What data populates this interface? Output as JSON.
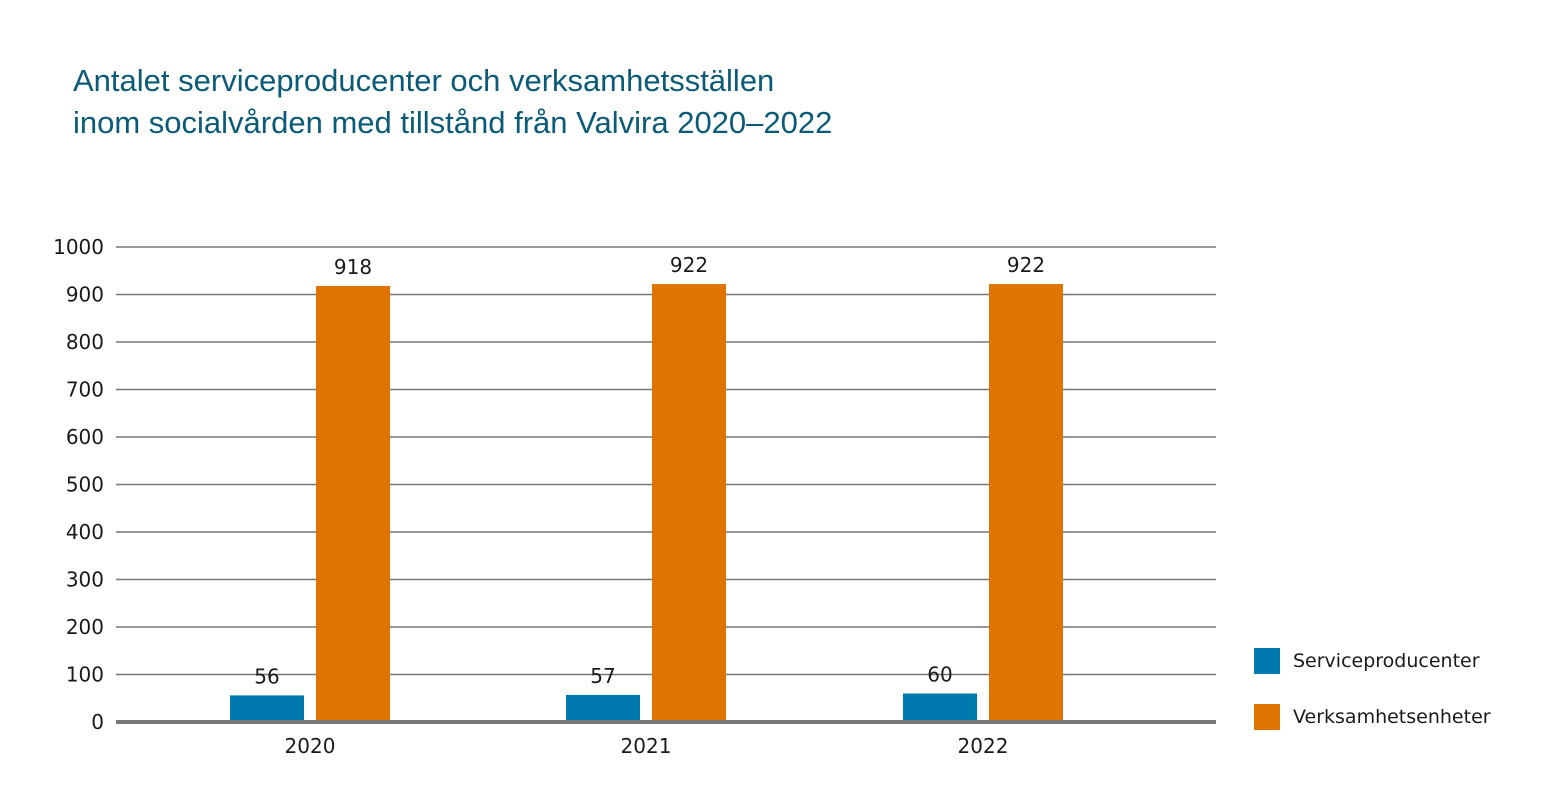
{
  "title": {
    "line1": "Antalet serviceproducenter och verksamhetsställen",
    "line2": "inom socialvården med tillstånd från Valvira 2020–2022"
  },
  "chart_data": {
    "type": "bar",
    "title": "Antalet serviceproducenter och verksamhetsställen inom socialvården med tillstånd från Valvira 2020–2022",
    "categories": [
      "2020",
      "2021",
      "2022"
    ],
    "series": [
      {
        "name": "Serviceproducenter",
        "values": [
          56,
          57,
          60
        ],
        "color": "#0079ae",
        "data_labels": [
          "56",
          "57",
          "60"
        ]
      },
      {
        "name": "Verksamhetsenheter",
        "values": [
          918,
          922,
          922
        ],
        "color": "#e07400",
        "data_labels": [
          "918",
          "922",
          "922"
        ]
      }
    ],
    "ylim": [
      0,
      1000
    ],
    "yticks": [
      0,
      100,
      200,
      300,
      400,
      500,
      600,
      700,
      800,
      900,
      1000
    ],
    "ytick_labels": [
      "0",
      "100",
      "200",
      "300",
      "400",
      "500",
      "600",
      "700",
      "800",
      "900",
      "1000"
    ],
    "grid": true,
    "legend_position": "right-bottom",
    "gridline_color": "#777777"
  },
  "legend": {
    "items": [
      {
        "label": "Serviceproducenter",
        "color": "#0079ae"
      },
      {
        "label": "Verksamhetsenheter",
        "color": "#e07400"
      }
    ]
  }
}
